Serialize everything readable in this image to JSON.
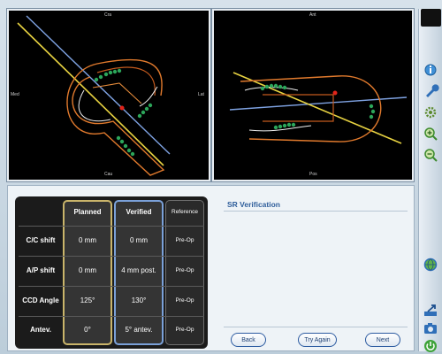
{
  "viewports": {
    "sagittal": {
      "top": "Cra",
      "bottom": "Cau",
      "left": "Med",
      "right": "Lat"
    },
    "axial": {
      "top": "Ant",
      "bottom": "Pos"
    }
  },
  "table": {
    "headers": [
      "Planned",
      "Verified",
      "Reference"
    ],
    "rows": [
      {
        "label": "C/C shift",
        "planned": "0 mm",
        "verified": "0 mm",
        "reference": "Pre-Op"
      },
      {
        "label": "A/P shift",
        "planned": "0 mm",
        "verified": "4 mm post.",
        "reference": "Pre-Op"
      },
      {
        "label": "CCD Angle",
        "planned": "125°",
        "verified": "130°",
        "reference": "Pre-Op"
      },
      {
        "label": "Antev.",
        "planned": "0°",
        "verified": "5° antev.",
        "reference": "Pre-Op"
      }
    ]
  },
  "verification": {
    "title": "SR Verification"
  },
  "buttons": {
    "back": "Back",
    "try_again": "Try Again",
    "next": "Next"
  },
  "toolbar": {
    "icons": [
      "info-icon",
      "wrench-icon",
      "settings-icon",
      "zoom-in-icon",
      "zoom-out-icon",
      "globe-icon",
      "export-icon",
      "camera-icon",
      "power-icon"
    ]
  },
  "colors": {
    "planned_border": "#c9b46a",
    "verified_border": "#7aa0d8",
    "accent": "#2f5e9b"
  }
}
